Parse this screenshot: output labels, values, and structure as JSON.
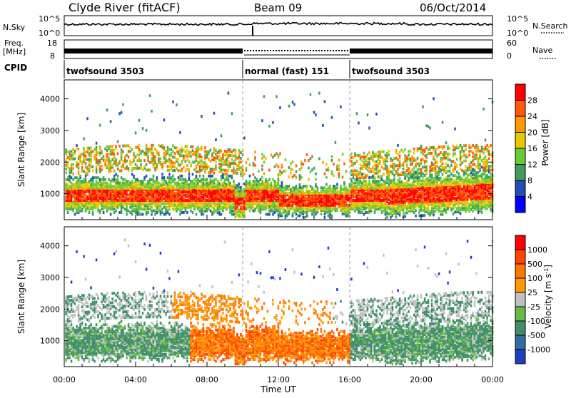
{
  "header": {
    "station": "Clyde River (fitACF)",
    "beam": "Beam 09",
    "date": "06/Oct/2014"
  },
  "noise_panel": {
    "left_label": "N.Sky",
    "right_label": "N.Search",
    "left_ticks": [
      "10^5",
      "10^0"
    ],
    "right_ticks": [
      "10^5",
      "10^0"
    ]
  },
  "freq_panel": {
    "label_line1": "Freq.",
    "label_line2": "[MHz]",
    "right_label": "Nave",
    "left_ticks": [
      "18",
      "8"
    ],
    "right_ticks": [
      "60",
      "0"
    ]
  },
  "cpid": {
    "label": "CPID",
    "segments": [
      {
        "label": "twofsound 3503",
        "start_hour": 0,
        "end_hour": 10
      },
      {
        "label": "normal (fast) 151",
        "start_hour": 10,
        "end_hour": 16
      },
      {
        "label": "twofsound 3503",
        "start_hour": 16,
        "end_hour": 24
      }
    ]
  },
  "chart_data": [
    {
      "type": "heatmap",
      "ylabel": "Slant Range [km]",
      "xlabel": "Time UT",
      "x_ticks": [
        "00:00",
        "04:00",
        "08:00",
        "12:00",
        "16:00",
        "20:00",
        "00:00"
      ],
      "xlim_hours": [
        0,
        24
      ],
      "ylim": [
        180,
        4600
      ],
      "y_ticks": [
        "1000",
        "2000",
        "3000",
        "4000"
      ],
      "colorbar": {
        "label": "Power [dB]",
        "ticks": [
          "4",
          "8",
          "12",
          "16",
          "20",
          "24",
          "28"
        ],
        "colors": [
          "#0000ff",
          "#2050b0",
          "#3f9e5a",
          "#66cc33",
          "#e8c800",
          "#ff9900",
          "#ff5a00",
          "#ff0000"
        ]
      }
    },
    {
      "type": "heatmap",
      "ylabel": "Slant Range [km]",
      "xlabel": "Time UT",
      "x_ticks": [
        "00:00",
        "04:00",
        "08:00",
        "12:00",
        "16:00",
        "20:00",
        "00:00"
      ],
      "xlim_hours": [
        0,
        24
      ],
      "ylim": [
        180,
        4600
      ],
      "y_ticks": [
        "1000",
        "2000",
        "3000",
        "4000"
      ],
      "colorbar": {
        "label": "Velocity [m s-1]",
        "ticks": [
          "1000",
          "500",
          "100",
          "25",
          "-25",
          "-100",
          "-500",
          "-1000"
        ],
        "colors": [
          "#2040c0",
          "#2f6fa0",
          "#3f8f6a",
          "#66bb44",
          "#c0c0c0",
          "#ff9900",
          "#ff7700",
          "#ff4400",
          "#ff0000"
        ]
      }
    }
  ]
}
